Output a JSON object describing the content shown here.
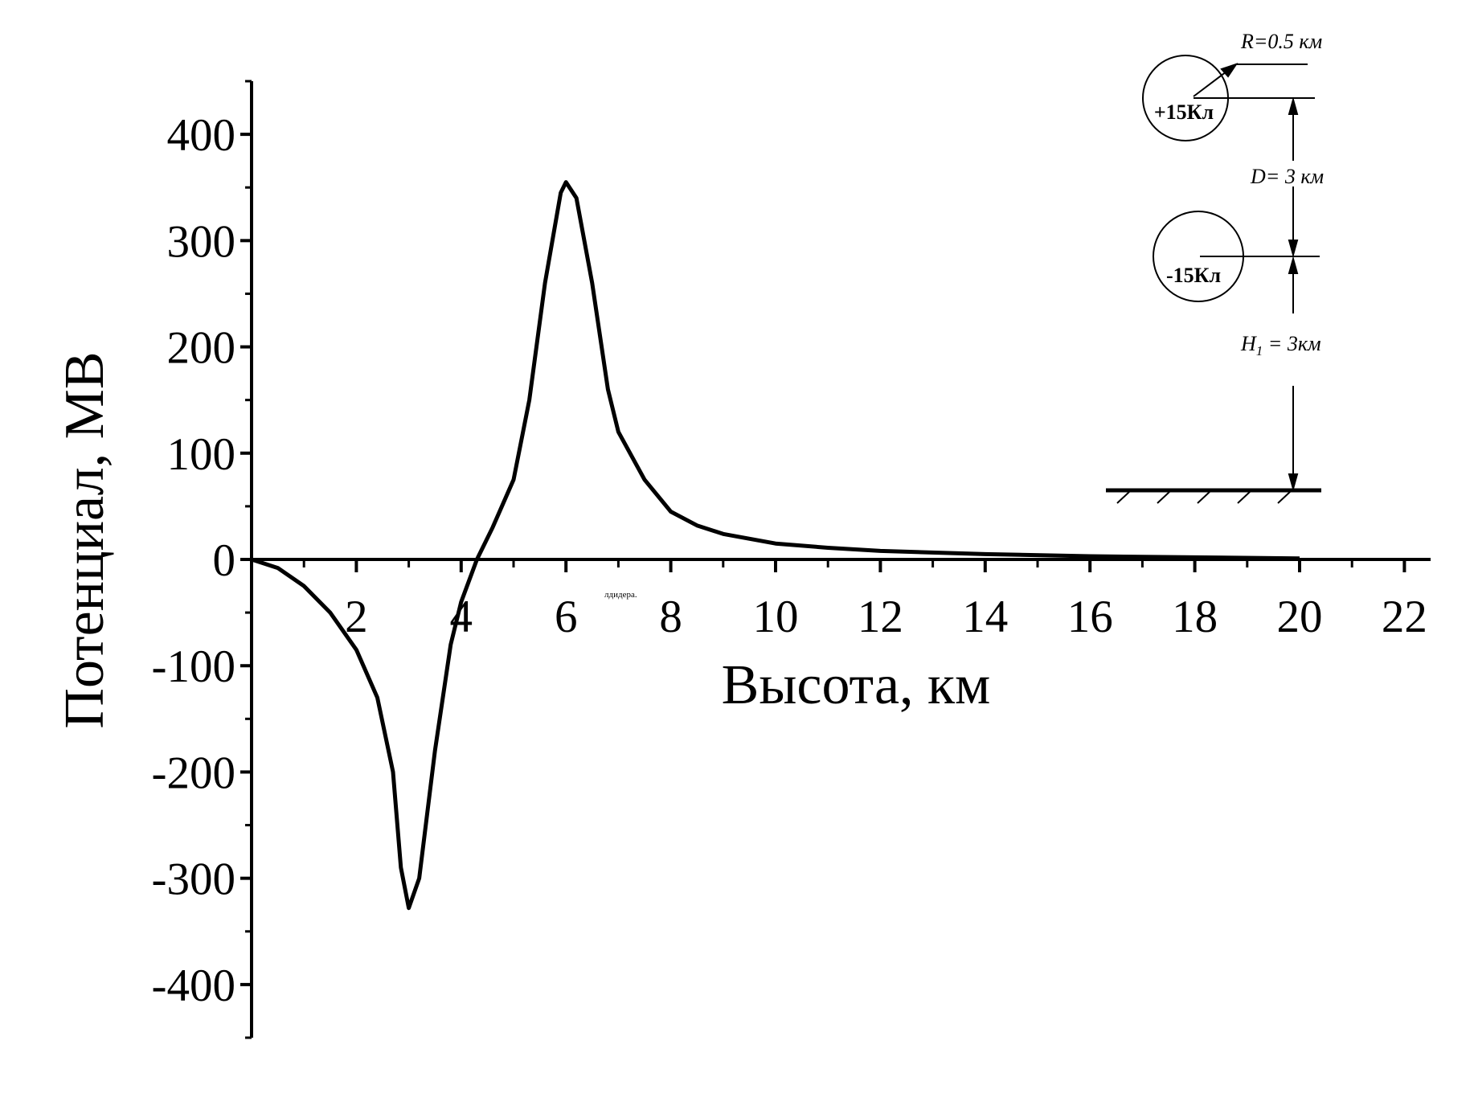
{
  "chart_data": {
    "type": "line",
    "xlabel": "Высота,  км",
    "ylabel": "Потенциал,  МВ",
    "x": [
      0,
      0.5,
      1,
      1.5,
      2,
      2.4,
      2.7,
      2.85,
      3,
      3.2,
      3.5,
      3.8,
      4,
      4.3,
      4.6,
      5,
      5.3,
      5.6,
      5.9,
      6,
      6.2,
      6.5,
      6.8,
      7,
      7.5,
      8,
      8.5,
      9,
      10,
      11,
      12,
      14,
      16,
      18,
      20
    ],
    "values": [
      0,
      -8,
      -25,
      -50,
      -85,
      -130,
      -200,
      -290,
      -328,
      -300,
      -180,
      -80,
      -40,
      0,
      30,
      75,
      150,
      260,
      345,
      355,
      340,
      260,
      160,
      120,
      75,
      45,
      32,
      24,
      15,
      11,
      8,
      5,
      3,
      2,
      1
    ],
    "color": "#000000",
    "xlim": [
      0,
      22.5
    ],
    "ylim": [
      -450,
      450
    ],
    "xticks": [
      2,
      4,
      6,
      8,
      10,
      12,
      14,
      16,
      18,
      20,
      22
    ],
    "xminorticks": [
      1,
      3,
      5,
      7,
      9,
      11,
      13,
      15,
      17,
      19,
      21
    ],
    "yticks": [
      -400,
      -300,
      -200,
      -100,
      0,
      100,
      200,
      300,
      400
    ],
    "yminorticks": [
      -450,
      -350,
      -250,
      -150,
      -50,
      50,
      150,
      250,
      350,
      450
    ],
    "note": "лдидера.",
    "inset": {
      "radius": "R=0.5 км",
      "upper_charge": "+15Кл",
      "spacing": "D= 3 км",
      "lower_charge": "-15Кл",
      "height": {
        "symbol": "H",
        "index": "1",
        "rest": " = 3км"
      }
    }
  }
}
